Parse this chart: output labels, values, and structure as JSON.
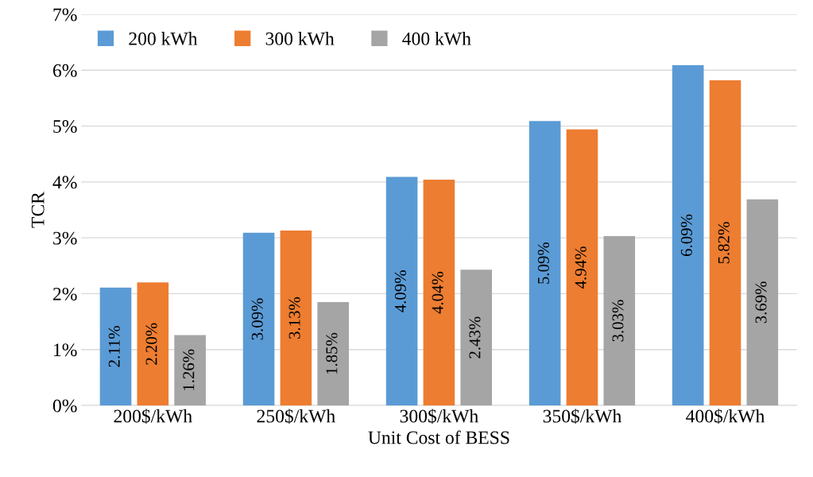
{
  "chart_data": {
    "type": "bar",
    "xlabel": "Unit Cost of BESS",
    "ylabel": "TCR",
    "categories": [
      "200$/kWh",
      "250$/kWh",
      "300$/kWh",
      "350$/kWh",
      "400$/kWh"
    ],
    "series": [
      {
        "name": "200 kWh",
        "color": "#5b9bd5",
        "values": [
          2.11,
          3.09,
          4.09,
          5.09,
          6.09
        ],
        "value_labels": [
          "2.11%",
          "3.09%",
          "4.09%",
          "5.09%",
          "6.09%"
        ]
      },
      {
        "name": "300 kWh",
        "color": "#ed7d31",
        "values": [
          2.2,
          3.13,
          4.04,
          4.94,
          5.82
        ],
        "value_labels": [
          "2.20%",
          "3.13%",
          "4.04%",
          "4.94%",
          "5.82%"
        ]
      },
      {
        "name": "400 kWh",
        "color": "#a5a5a5",
        "values": [
          1.26,
          1.85,
          2.43,
          3.03,
          3.69
        ],
        "value_labels": [
          "1.26%",
          "1.85%",
          "2.43%",
          "3.03%",
          "3.69%"
        ]
      }
    ],
    "ylim": [
      0,
      7
    ],
    "yticks": [
      {
        "value": 0,
        "label": "0%"
      },
      {
        "value": 1,
        "label": "1%"
      },
      {
        "value": 2,
        "label": "2%"
      },
      {
        "value": 3,
        "label": "3%"
      },
      {
        "value": 4,
        "label": "4%"
      },
      {
        "value": 5,
        "label": "5%"
      },
      {
        "value": 6,
        "label": "6%"
      },
      {
        "value": 7,
        "label": "7%"
      }
    ],
    "grid": "y",
    "legend": "top left"
  }
}
